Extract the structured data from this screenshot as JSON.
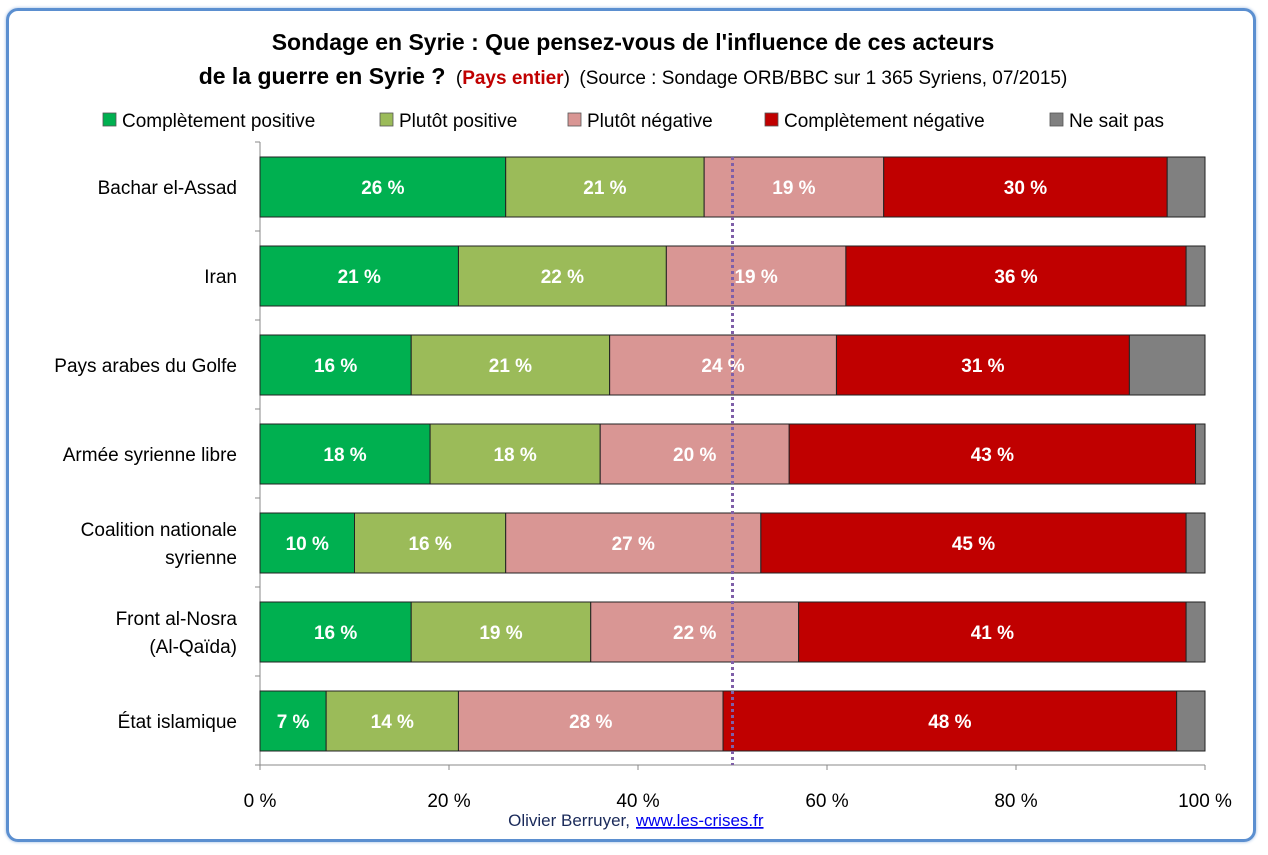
{
  "chart_data": {
    "type": "bar",
    "orientation": "horizontal",
    "stacked": "percent",
    "title_line1": "Sondage en Syrie : Que pensez-vous de l'influence de ces acteurs",
    "title_line2": "de la guerre en Syrie ?",
    "subtitle_paren_open": "(",
    "subtitle_highlight": "Pays entier",
    "subtitle_paren_close": ")",
    "subtitle_source": "(Source : Sondage ORB/BBC sur 1 365 Syriens, 07/2015)",
    "legend_position": "top",
    "categories": [
      [
        "Bachar el-Assad"
      ],
      [
        "Iran"
      ],
      [
        "Pays arabes du Golfe"
      ],
      [
        "Armée syrienne libre"
      ],
      [
        "Coalition nationale",
        "syrienne"
      ],
      [
        "Front al-Nosra",
        "(Al-Qaïda)"
      ],
      [
        "État islamique"
      ]
    ],
    "series": [
      {
        "name": "Complètement positive",
        "color": "#00b050",
        "values": [
          26,
          21,
          16,
          18,
          10,
          16,
          7
        ],
        "labeled": true
      },
      {
        "name": "Plutôt positive",
        "color": "#9bbb59",
        "values": [
          21,
          22,
          21,
          18,
          16,
          19,
          14
        ],
        "labeled": true
      },
      {
        "name": "Plutôt négative",
        "color": "#d99694",
        "values": [
          19,
          19,
          24,
          20,
          27,
          22,
          28
        ],
        "labeled": true
      },
      {
        "name": "Complètement négative",
        "color": "#c00000",
        "values": [
          30,
          36,
          31,
          43,
          45,
          41,
          48
        ],
        "labeled": true
      },
      {
        "name": "Ne sait pas",
        "color": "#808080",
        "values": [
          4,
          2,
          8,
          1,
          2,
          2,
          3
        ],
        "labeled": false
      }
    ],
    "label_suffix": " %",
    "xlim": [
      0,
      100
    ],
    "xticks": [
      "0 %",
      "20 %",
      "40 %",
      "60 %",
      "80 %",
      "100 %"
    ],
    "reference_line": {
      "value": 50,
      "color": "#7f5fa8",
      "style": "dotted"
    },
    "grid": false
  },
  "footer": {
    "author": "Olivier Berruyer,",
    "link": "www.les-crises.fr"
  },
  "colors": {
    "frame": "#5b8fd0",
    "highlight": "#c00000"
  }
}
